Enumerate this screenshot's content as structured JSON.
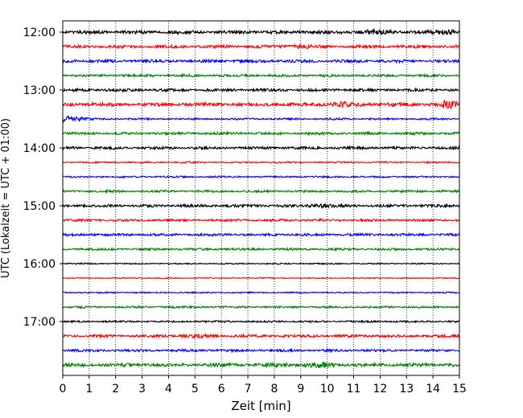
{
  "chart_data": {
    "type": "line",
    "title": "",
    "xlabel": "Zeit  [min]",
    "ylabel": "UTC (Lokalzeit = UTC + 01:00)",
    "xlim": [
      0,
      15
    ],
    "x_ticks": [
      0,
      1,
      2,
      3,
      4,
      5,
      6,
      7,
      8,
      9,
      10,
      11,
      12,
      13,
      14,
      15
    ],
    "y_ticks": [
      "12:00",
      "13:00",
      "14:00",
      "15:00",
      "16:00",
      "17:00"
    ],
    "grid": "vertical dotted",
    "colors": [
      "#000000",
      "#ff0000",
      "#0000ff",
      "#008000"
    ],
    "traces": [
      {
        "start": "12:00",
        "color": "#000000",
        "amplitude": 2.2
      },
      {
        "start": "12:15",
        "color": "#ff0000",
        "amplitude": 2.0
      },
      {
        "start": "12:30",
        "color": "#0000ff",
        "amplitude": 1.9
      },
      {
        "start": "12:45",
        "color": "#008000",
        "amplitude": 1.6
      },
      {
        "start": "13:00",
        "color": "#000000",
        "amplitude": 1.9
      },
      {
        "start": "13:15",
        "color": "#ff0000",
        "amplitude": 2.4
      },
      {
        "start": "13:30",
        "color": "#0000ff",
        "amplitude": 1.2
      },
      {
        "start": "13:45",
        "color": "#008000",
        "amplitude": 1.7
      },
      {
        "start": "14:00",
        "color": "#000000",
        "amplitude": 1.7
      },
      {
        "start": "14:15",
        "color": "#ff0000",
        "amplitude": 1.0
      },
      {
        "start": "14:30",
        "color": "#0000ff",
        "amplitude": 1.1
      },
      {
        "start": "14:45",
        "color": "#008000",
        "amplitude": 1.4
      },
      {
        "start": "15:00",
        "color": "#000000",
        "amplitude": 1.8
      },
      {
        "start": "15:15",
        "color": "#ff0000",
        "amplitude": 1.5
      },
      {
        "start": "15:30",
        "color": "#0000ff",
        "amplitude": 1.6
      },
      {
        "start": "15:45",
        "color": "#008000",
        "amplitude": 1.5
      },
      {
        "start": "16:00",
        "color": "#000000",
        "amplitude": 0.9
      },
      {
        "start": "16:15",
        "color": "#ff0000",
        "amplitude": 0.7
      },
      {
        "start": "16:30",
        "color": "#0000ff",
        "amplitude": 0.9
      },
      {
        "start": "16:45",
        "color": "#008000",
        "amplitude": 1.3
      },
      {
        "start": "17:00",
        "color": "#000000",
        "amplitude": 1.2
      },
      {
        "start": "17:15",
        "color": "#ff0000",
        "amplitude": 1.8
      },
      {
        "start": "17:30",
        "color": "#0000ff",
        "amplitude": 1.6
      },
      {
        "start": "17:45",
        "color": "#008000",
        "amplitude": 2.3
      }
    ],
    "events": [
      {
        "trace": "12:00",
        "x": 11.8,
        "strength": 1.5
      },
      {
        "trace": "12:00",
        "x": 14.7,
        "strength": 2.0
      },
      {
        "trace": "12:15",
        "x": 9.0,
        "strength": 1.2
      },
      {
        "trace": "13:15",
        "x": 10.5,
        "strength": 1.4
      },
      {
        "trace": "13:15",
        "x": 14.6,
        "strength": 3.0
      },
      {
        "trace": "13:30",
        "x": 0.2,
        "strength": 3.5
      },
      {
        "trace": "15:00",
        "x": 9.8,
        "strength": 1.3
      },
      {
        "trace": "17:15",
        "x": 5.0,
        "strength": 1.4
      },
      {
        "trace": "17:45",
        "x": 9.8,
        "strength": 1.6
      },
      {
        "trace": "17:45",
        "x": 8.2,
        "strength": 1.2
      }
    ]
  }
}
